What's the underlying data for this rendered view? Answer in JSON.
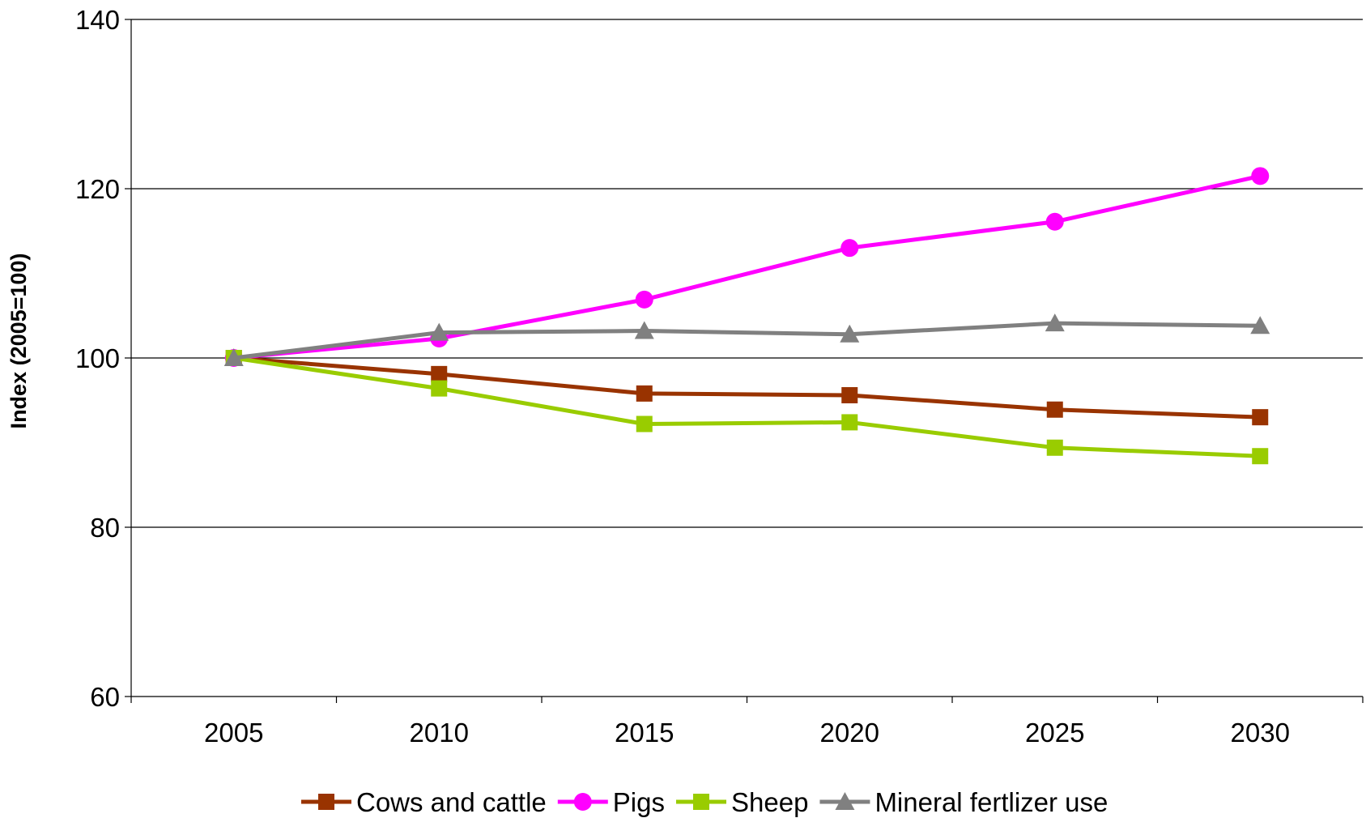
{
  "chart_data": {
    "type": "line",
    "title": "",
    "xlabel": "",
    "ylabel": "Index (2005=100)",
    "ylim": [
      60,
      140
    ],
    "yticks": [
      60,
      80,
      100,
      120,
      140
    ],
    "x": [
      "2005",
      "2010",
      "2015",
      "2020",
      "2025",
      "2030"
    ],
    "grid": "horizontal",
    "legend": "bottom",
    "series": [
      {
        "name": "Cows and cattle",
        "color": "#993300",
        "marker": "square",
        "values": [
          100,
          98.1,
          95.8,
          95.6,
          93.9,
          93.0
        ]
      },
      {
        "name": "Pigs",
        "color": "#ff00ff",
        "marker": "circle",
        "values": [
          100,
          102.3,
          106.9,
          113.0,
          116.1,
          121.5
        ]
      },
      {
        "name": "Sheep",
        "color": "#99cc00",
        "marker": "square",
        "values": [
          100,
          96.4,
          92.2,
          92.4,
          89.4,
          88.4
        ]
      },
      {
        "name": "Mineral fertlizer use",
        "color": "#808080",
        "marker": "triangle",
        "values": [
          100,
          103.0,
          103.2,
          102.8,
          104.1,
          103.8
        ]
      }
    ]
  }
}
